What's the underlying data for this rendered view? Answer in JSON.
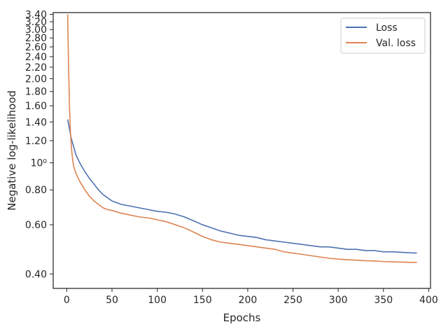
{
  "chart_data": {
    "type": "line",
    "title": "",
    "xlabel": "Epochs",
    "ylabel": "Negative log-likelihood",
    "yscale": "log",
    "xlim": [
      -15,
      402
    ],
    "ylim": [
      0.355,
      3.45
    ],
    "grid": false,
    "legend_position": "top-right",
    "x_ticks": [
      0,
      50,
      100,
      150,
      200,
      250,
      300,
      350,
      400
    ],
    "x_tick_labels": [
      "0",
      "50",
      "100",
      "150",
      "200",
      "250",
      "300",
      "350",
      "400"
    ],
    "y_ticks": [
      0.4,
      0.6,
      0.8,
      1.0,
      1.2,
      1.4,
      1.6,
      1.8,
      2.0,
      2.2,
      2.4,
      2.6,
      2.8,
      3.0,
      3.2,
      3.4
    ],
    "y_tick_labels": [
      "0.40",
      "0.60",
      "0.80",
      "10⁰",
      "1.20",
      "1.40",
      "1.60",
      "1.80",
      "2.00",
      "2.20",
      "2.40",
      "2.60",
      "2.80",
      "3.00",
      "3.20",
      "3.40"
    ],
    "series": [
      {
        "name": "Loss",
        "color": "#4c72b0",
        "x": [
          1,
          3,
          5,
          8,
          10,
          15,
          20,
          25,
          30,
          35,
          40,
          45,
          50,
          60,
          70,
          80,
          90,
          100,
          110,
          120,
          130,
          140,
          150,
          160,
          170,
          180,
          190,
          200,
          210,
          220,
          230,
          240,
          250,
          260,
          270,
          280,
          290,
          300,
          310,
          320,
          330,
          340,
          350,
          360,
          370,
          380,
          387
        ],
        "y": [
          1.43,
          1.32,
          1.22,
          1.13,
          1.07,
          0.99,
          0.93,
          0.88,
          0.84,
          0.8,
          0.77,
          0.75,
          0.73,
          0.71,
          0.7,
          0.69,
          0.68,
          0.67,
          0.665,
          0.655,
          0.64,
          0.62,
          0.6,
          0.585,
          0.57,
          0.56,
          0.55,
          0.545,
          0.54,
          0.53,
          0.525,
          0.52,
          0.515,
          0.51,
          0.505,
          0.5,
          0.5,
          0.495,
          0.49,
          0.49,
          0.485,
          0.485,
          0.48,
          0.48,
          0.478,
          0.476,
          0.475
        ]
      },
      {
        "name": "Val. loss",
        "color": "#dd8452",
        "x": [
          1,
          2,
          3,
          4,
          5,
          6,
          7,
          8,
          10,
          12,
          15,
          20,
          25,
          30,
          35,
          40,
          45,
          50,
          60,
          70,
          80,
          90,
          100,
          110,
          120,
          130,
          140,
          150,
          160,
          170,
          180,
          190,
          200,
          210,
          220,
          230,
          240,
          250,
          260,
          270,
          280,
          290,
          300,
          310,
          320,
          330,
          340,
          350,
          360,
          370,
          380,
          387
        ],
        "y": [
          3.4,
          2.2,
          1.6,
          1.3,
          1.15,
          1.06,
          1.0,
          0.96,
          0.92,
          0.89,
          0.85,
          0.8,
          0.76,
          0.73,
          0.71,
          0.69,
          0.68,
          0.675,
          0.66,
          0.65,
          0.64,
          0.635,
          0.625,
          0.615,
          0.6,
          0.585,
          0.565,
          0.545,
          0.53,
          0.52,
          0.515,
          0.51,
          0.505,
          0.5,
          0.495,
          0.49,
          0.48,
          0.475,
          0.47,
          0.465,
          0.46,
          0.455,
          0.452,
          0.45,
          0.448,
          0.446,
          0.445,
          0.443,
          0.442,
          0.441,
          0.44,
          0.44
        ]
      }
    ]
  }
}
